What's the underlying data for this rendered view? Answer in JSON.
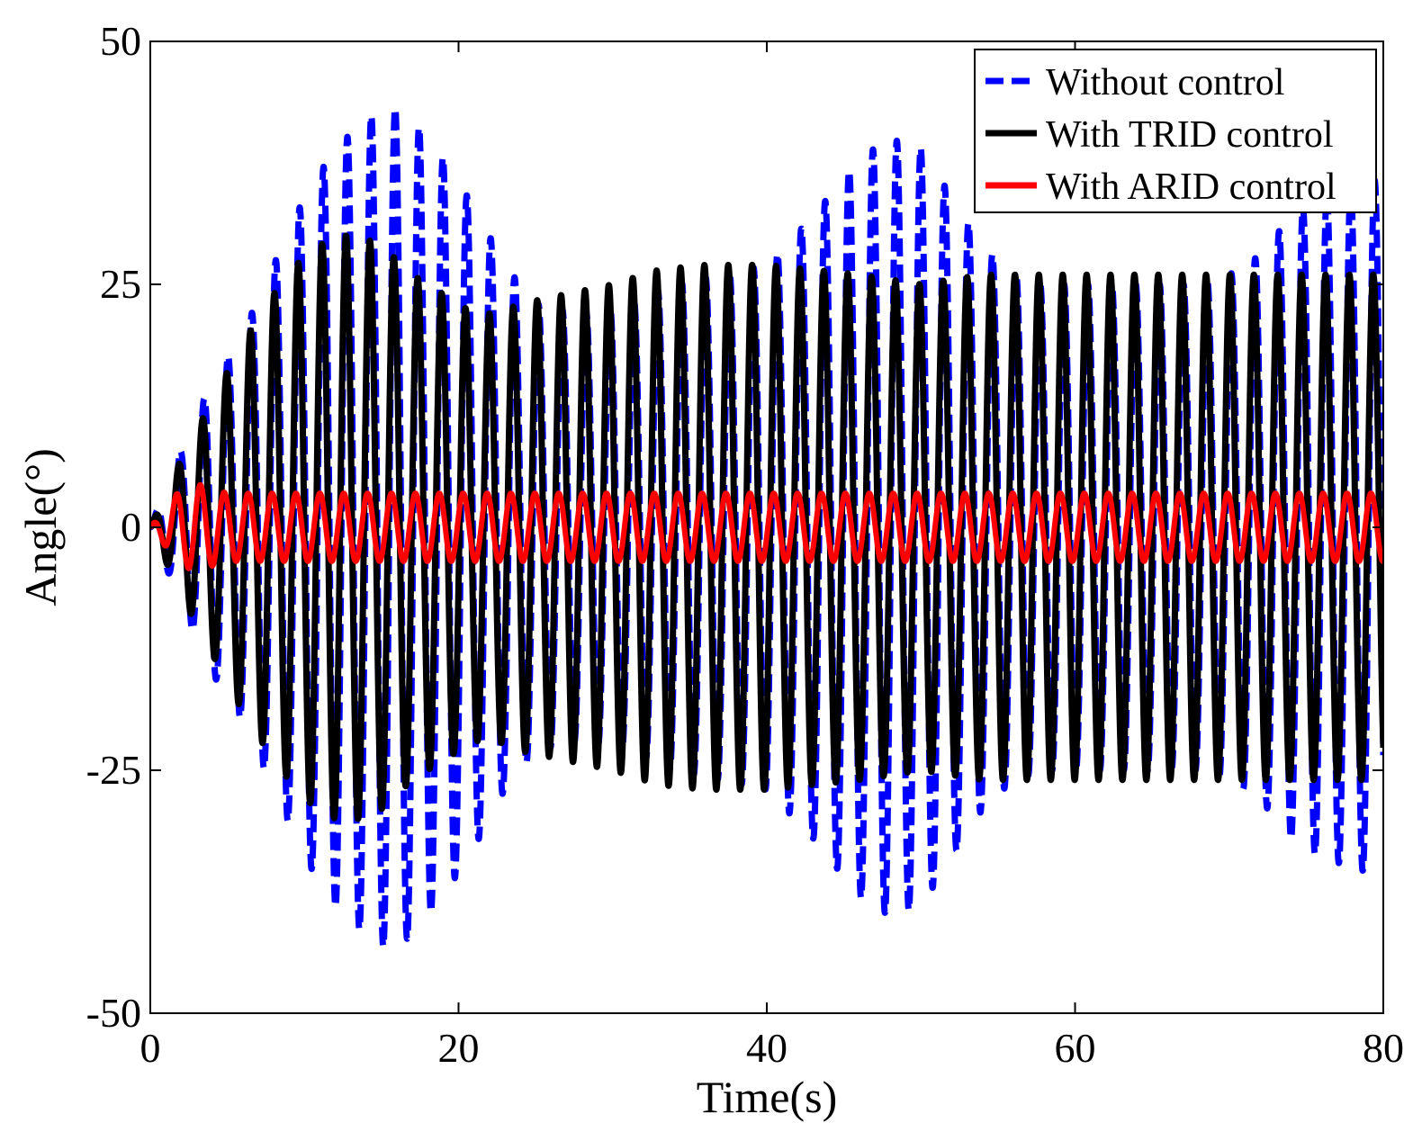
{
  "chart_data": {
    "type": "line",
    "title": "",
    "xlabel": "Time(s)",
    "ylabel": "Angle(°)",
    "xlim": [
      0,
      80
    ],
    "ylim": [
      -50,
      50
    ],
    "xticks": [
      0,
      20,
      40,
      60,
      80
    ],
    "yticks": [
      -50,
      -25,
      0,
      25,
      50
    ],
    "xtick_labels": [
      "0",
      "20",
      "40",
      "60",
      "80"
    ],
    "ytick_labels": [
      "-50",
      "-25",
      "0",
      "25",
      "50"
    ],
    "grid": false,
    "legend_position": "top-right",
    "oscillation_period_s": 1.55,
    "series": [
      {
        "name": "Without control",
        "color": "#0000ff",
        "style": "dashed",
        "envelope": {
          "t": [
            0,
            2,
            4,
            6,
            8,
            10,
            12,
            14,
            15.5,
            17,
            19,
            21,
            23,
            25,
            28,
            31,
            34,
            37,
            40,
            43,
            46,
            48,
            50,
            52,
            54,
            56,
            58,
            60,
            62,
            64,
            66,
            68,
            70,
            72,
            74,
            76,
            78,
            80
          ],
          "amplitude": [
            0,
            8,
            15,
            20,
            27,
            34,
            39,
            42,
            43.5,
            42,
            38,
            33,
            27,
            23,
            22,
            23,
            25,
            26,
            27,
            32,
            38,
            40,
            39,
            34,
            29,
            26,
            25,
            25,
            25,
            25,
            25,
            25,
            26,
            28,
            32,
            34,
            35,
            36
          ]
        }
      },
      {
        "name": "With TRID control",
        "color": "#000000",
        "style": "solid",
        "envelope": {
          "t": [
            0,
            2,
            4,
            6,
            8,
            10,
            12,
            13.5,
            15,
            17,
            19,
            21,
            22.5,
            24,
            27,
            30,
            33,
            36,
            38,
            40,
            43,
            46,
            48,
            50,
            52,
            54,
            56,
            60,
            64,
            68,
            72,
            76,
            80
          ],
          "amplitude": [
            0,
            7,
            13,
            19,
            24,
            28,
            30,
            30,
            29,
            26,
            24,
            22,
            22,
            23,
            24,
            25,
            26.5,
            27,
            27,
            27,
            26.5,
            26,
            25.5,
            25,
            25.5,
            26,
            26,
            26,
            26,
            26,
            26,
            26,
            26
          ]
        }
      },
      {
        "name": "With ARID control",
        "color": "#ff0000",
        "style": "solid",
        "envelope": {
          "t": [
            0,
            1,
            2,
            3,
            4,
            5,
            6,
            10,
            20,
            40,
            60,
            80
          ],
          "amplitude": [
            0,
            2,
            4,
            4.5,
            4,
            3.5,
            3.5,
            3.5,
            3.5,
            3.5,
            3.5,
            3.5
          ]
        }
      }
    ]
  }
}
